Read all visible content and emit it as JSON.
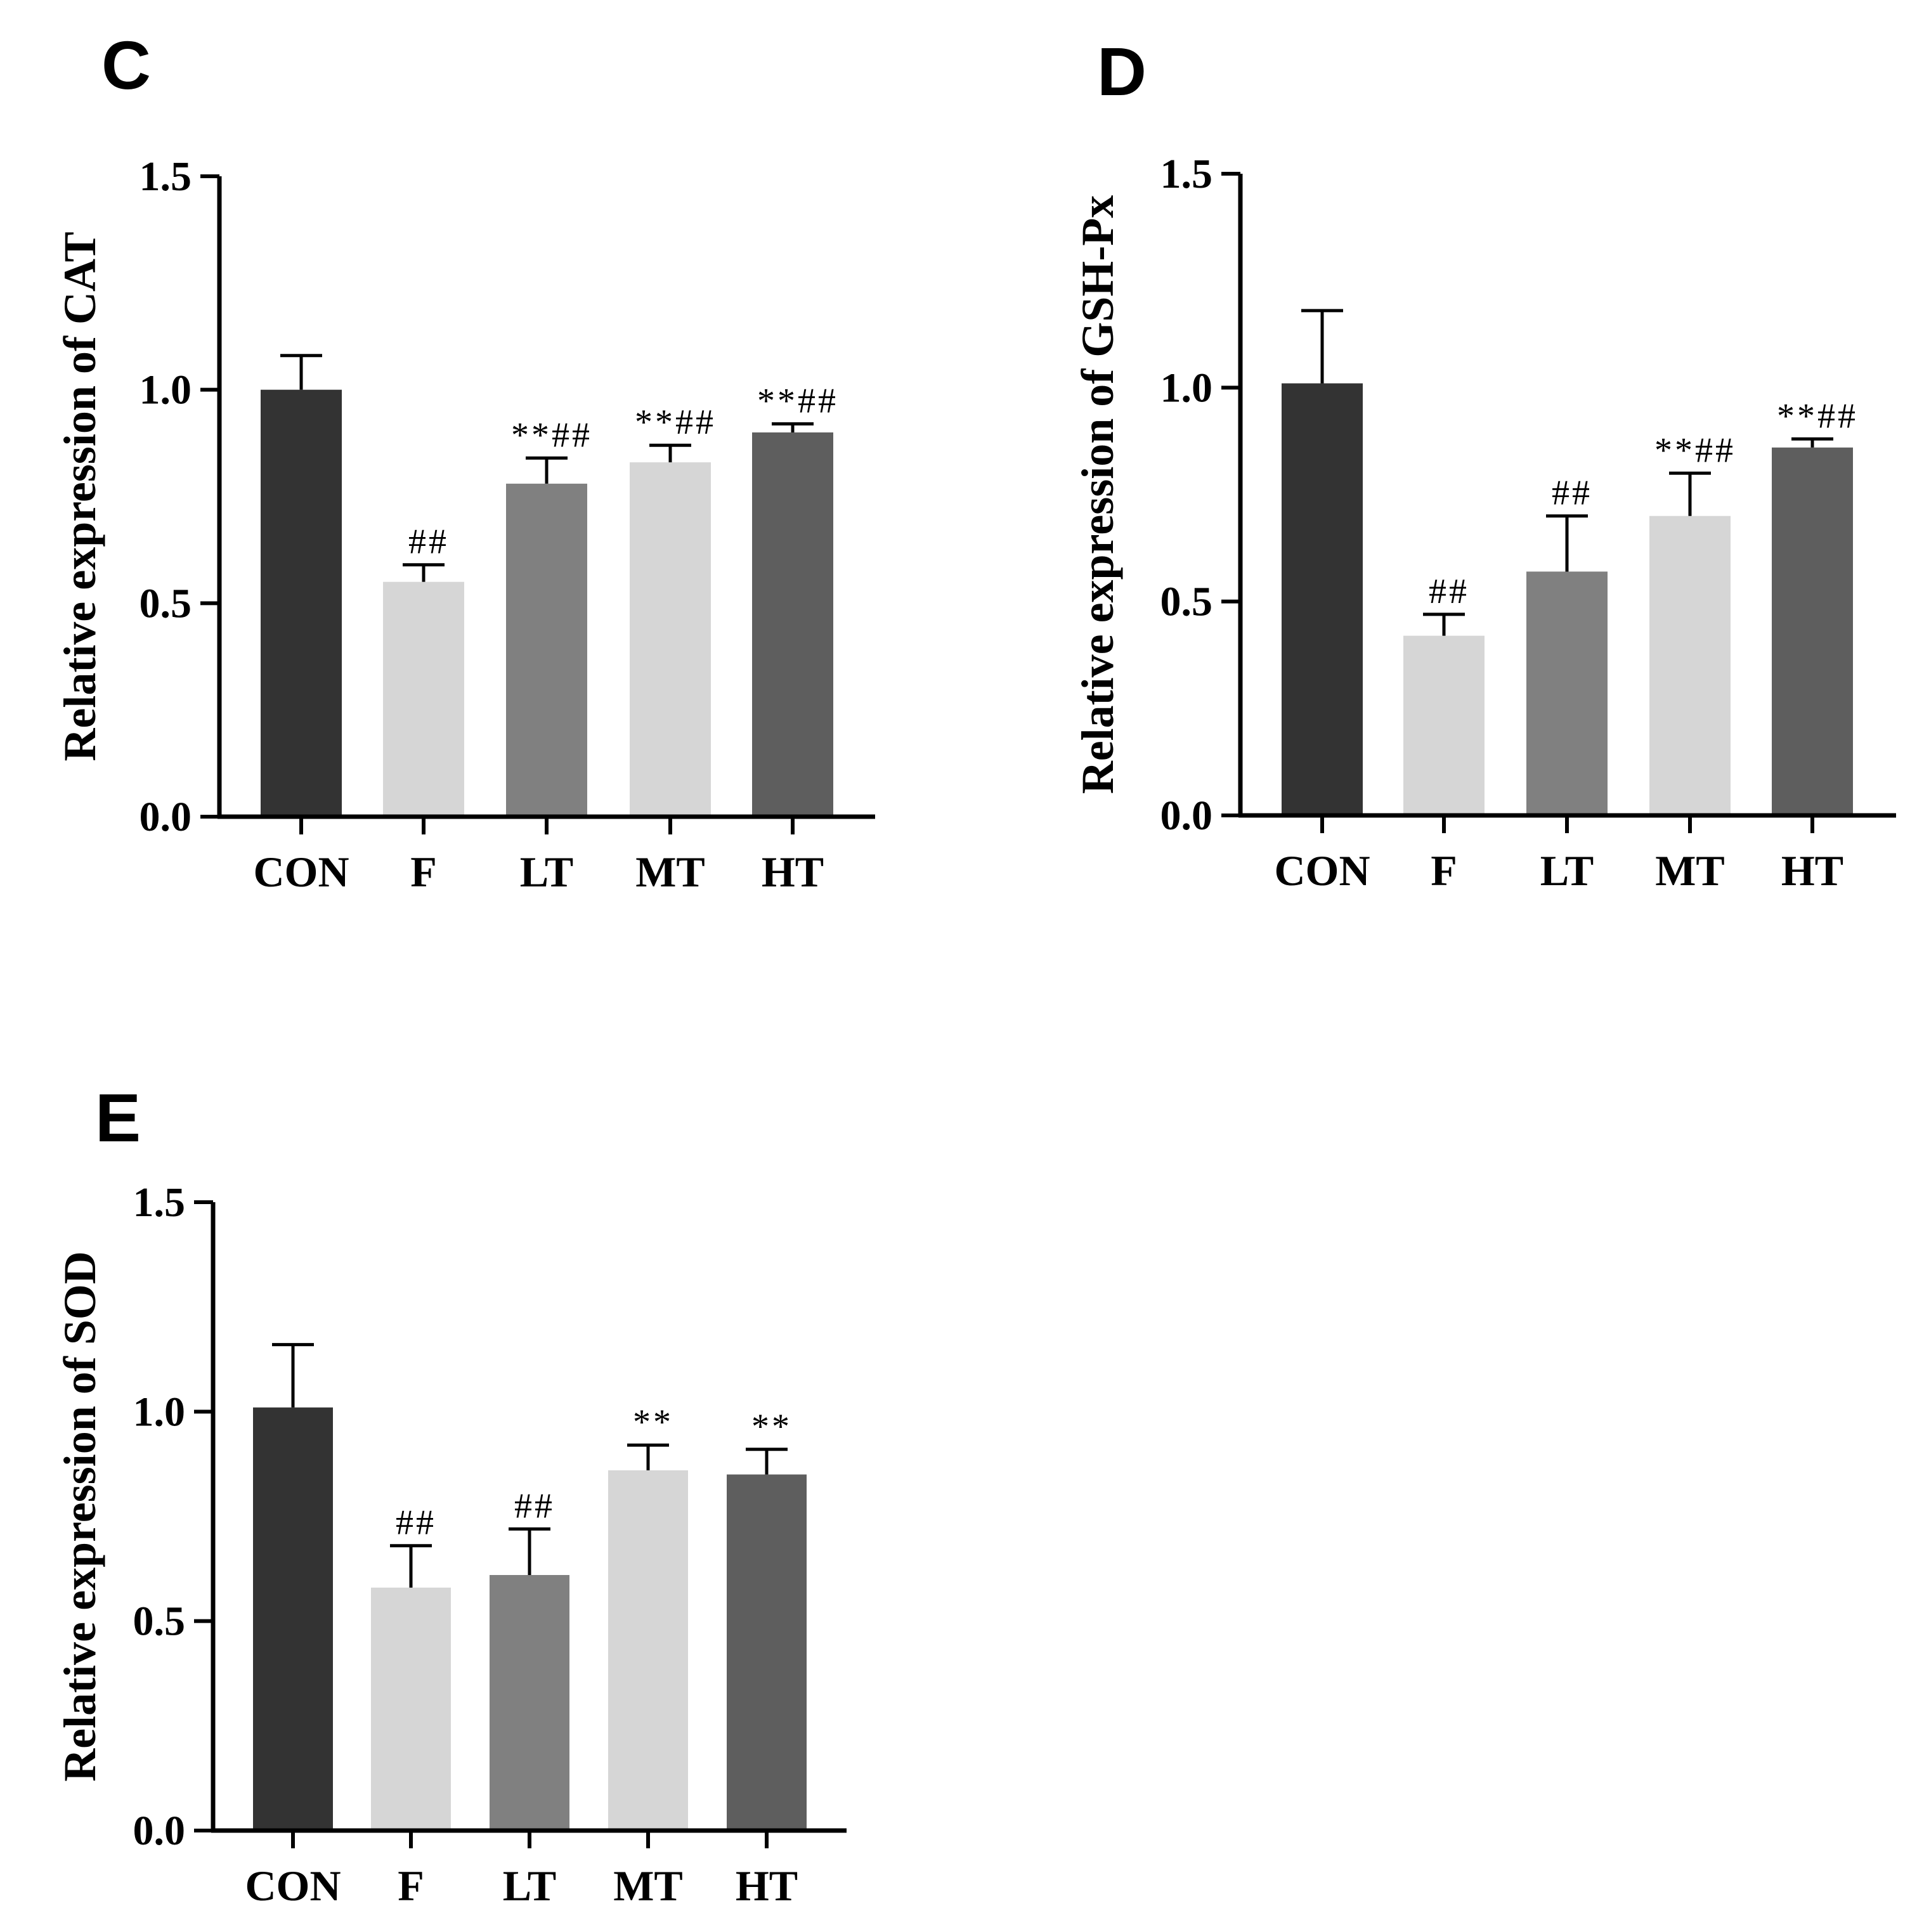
{
  "chart_data": [
    {
      "panel": "C",
      "type": "bar",
      "title": "",
      "xlabel": "",
      "ylabel": "Relative expression of CAT",
      "ylim": [
        0,
        1.5
      ],
      "yticks": [
        "0.0",
        "0.5",
        "1.0",
        "1.5"
      ],
      "categories": [
        "CON",
        "F",
        "LT",
        "MT",
        "HT"
      ],
      "values": [
        1.0,
        0.55,
        0.78,
        0.83,
        0.9
      ],
      "errors": [
        0.08,
        0.04,
        0.06,
        0.04,
        0.02
      ],
      "annotations": [
        "",
        "##",
        "**##",
        "**##",
        "**##"
      ],
      "colors": [
        "#333333",
        "#d6d6d6",
        "#808080",
        "#d6d6d6",
        "#5e5e5e"
      ]
    },
    {
      "panel": "D",
      "type": "bar",
      "title": "",
      "xlabel": "",
      "ylabel": "Relative expression of GSH-Px",
      "ylim": [
        0,
        1.5
      ],
      "yticks": [
        "0.0",
        "0.5",
        "1.0",
        "1.5"
      ],
      "categories": [
        "CON",
        "F",
        "LT",
        "MT",
        "HT"
      ],
      "values": [
        1.01,
        0.42,
        0.57,
        0.7,
        0.86
      ],
      "errors": [
        0.17,
        0.05,
        0.13,
        0.1,
        0.02
      ],
      "annotations": [
        "",
        "##",
        "##",
        "**##",
        "**##"
      ],
      "colors": [
        "#333333",
        "#d6d6d6",
        "#808080",
        "#d6d6d6",
        "#5e5e5e"
      ]
    },
    {
      "panel": "E",
      "type": "bar",
      "title": "",
      "xlabel": "",
      "ylabel": "Relative expression of SOD",
      "ylim": [
        0,
        1.5
      ],
      "yticks": [
        "0.0",
        "0.5",
        "1.0",
        "1.5"
      ],
      "categories": [
        "CON",
        "F",
        "LT",
        "MT",
        "HT"
      ],
      "values": [
        1.01,
        0.58,
        0.61,
        0.86,
        0.85
      ],
      "errors": [
        0.15,
        0.1,
        0.11,
        0.06,
        0.06
      ],
      "annotations": [
        "",
        "##",
        "##",
        "**",
        "**"
      ],
      "colors": [
        "#333333",
        "#d6d6d6",
        "#808080",
        "#d6d6d6",
        "#5e5e5e"
      ]
    }
  ]
}
